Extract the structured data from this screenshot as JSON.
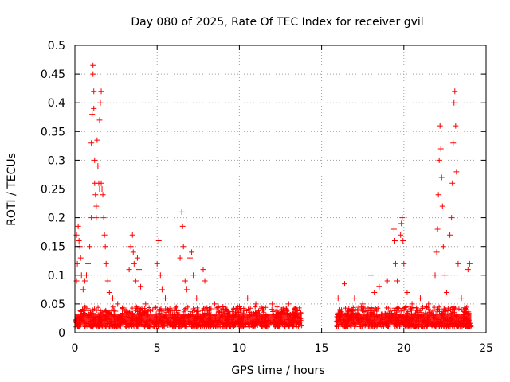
{
  "chart_data": {
    "type": "scatter",
    "title": "Day 080 of 2025, Rate Of TEC Index for receiver gvil",
    "xlabel": "GPS time / hours",
    "ylabel": "ROTI / TECUs",
    "xlim": [
      0,
      25
    ],
    "ylim": [
      0,
      0.5
    ],
    "xticks": [
      0,
      5,
      10,
      15,
      20,
      25
    ],
    "yticks": [
      0,
      0.05,
      0.1,
      0.15,
      0.2,
      0.25,
      0.3,
      0.35,
      0.4,
      0.45,
      0.5
    ],
    "xtick_labels": [
      "0",
      "5",
      "10",
      "15",
      "20",
      "25"
    ],
    "ytick_labels": [
      "0",
      "0.05",
      "0.1",
      "0.15",
      "0.2",
      "0.25",
      "0.3",
      "0.35",
      "0.4",
      "0.45",
      "0.5"
    ],
    "grid": true,
    "marker": "+",
    "series_color": "#ff0000",
    "data_gap_hours": [
      13.8,
      15.9
    ],
    "series": [
      {
        "name": "ROTI",
        "points": [
          [
            0.1,
            0.09
          ],
          [
            0.1,
            0.17
          ],
          [
            0.15,
            0.12
          ],
          [
            0.2,
            0.185
          ],
          [
            0.25,
            0.16
          ],
          [
            0.3,
            0.15
          ],
          [
            0.35,
            0.13
          ],
          [
            0.4,
            0.1
          ],
          [
            0.5,
            0.075
          ],
          [
            0.6,
            0.09
          ],
          [
            0.7,
            0.1
          ],
          [
            0.8,
            0.12
          ],
          [
            0.9,
            0.15
          ],
          [
            1.0,
            0.2
          ],
          [
            1.0,
            0.33
          ],
          [
            1.05,
            0.38
          ],
          [
            1.1,
            0.465
          ],
          [
            1.1,
            0.45
          ],
          [
            1.15,
            0.42
          ],
          [
            1.15,
            0.39
          ],
          [
            1.2,
            0.3
          ],
          [
            1.2,
            0.26
          ],
          [
            1.25,
            0.24
          ],
          [
            1.3,
            0.22
          ],
          [
            1.3,
            0.2
          ],
          [
            1.35,
            0.335
          ],
          [
            1.4,
            0.29
          ],
          [
            1.45,
            0.26
          ],
          [
            1.5,
            0.25
          ],
          [
            1.5,
            0.37
          ],
          [
            1.55,
            0.4
          ],
          [
            1.6,
            0.42
          ],
          [
            1.6,
            0.26
          ],
          [
            1.65,
            0.25
          ],
          [
            1.7,
            0.24
          ],
          [
            1.75,
            0.2
          ],
          [
            1.8,
            0.17
          ],
          [
            1.85,
            0.15
          ],
          [
            1.9,
            0.12
          ],
          [
            2.0,
            0.09
          ],
          [
            2.1,
            0.07
          ],
          [
            2.3,
            0.06
          ],
          [
            2.6,
            0.05
          ],
          [
            3.0,
            0.04
          ],
          [
            3.3,
            0.11
          ],
          [
            3.4,
            0.15
          ],
          [
            3.5,
            0.17
          ],
          [
            3.55,
            0.14
          ],
          [
            3.6,
            0.12
          ],
          [
            3.7,
            0.09
          ],
          [
            3.8,
            0.13
          ],
          [
            3.9,
            0.11
          ],
          [
            4.0,
            0.08
          ],
          [
            4.3,
            0.05
          ],
          [
            5.0,
            0.12
          ],
          [
            5.1,
            0.16
          ],
          [
            5.2,
            0.1
          ],
          [
            5.3,
            0.075
          ],
          [
            5.5,
            0.06
          ],
          [
            6.4,
            0.13
          ],
          [
            6.5,
            0.21
          ],
          [
            6.55,
            0.185
          ],
          [
            6.6,
            0.15
          ],
          [
            6.7,
            0.09
          ],
          [
            6.8,
            0.075
          ],
          [
            7.0,
            0.13
          ],
          [
            7.1,
            0.14
          ],
          [
            7.2,
            0.1
          ],
          [
            7.4,
            0.06
          ],
          [
            7.8,
            0.11
          ],
          [
            7.9,
            0.09
          ],
          [
            8.5,
            0.05
          ],
          [
            9.0,
            0.045
          ],
          [
            10.0,
            0.045
          ],
          [
            10.5,
            0.06
          ],
          [
            11.0,
            0.05
          ],
          [
            12.0,
            0.05
          ],
          [
            13.0,
            0.05
          ],
          [
            13.5,
            0.04
          ],
          [
            16.0,
            0.06
          ],
          [
            16.4,
            0.085
          ],
          [
            17.0,
            0.06
          ],
          [
            17.5,
            0.05
          ],
          [
            18.0,
            0.1
          ],
          [
            18.2,
            0.07
          ],
          [
            18.5,
            0.08
          ],
          [
            19.0,
            0.09
          ],
          [
            19.4,
            0.18
          ],
          [
            19.45,
            0.16
          ],
          [
            19.5,
            0.12
          ],
          [
            19.6,
            0.09
          ],
          [
            19.8,
            0.17
          ],
          [
            19.85,
            0.19
          ],
          [
            19.9,
            0.2
          ],
          [
            19.95,
            0.16
          ],
          [
            20.0,
            0.12
          ],
          [
            20.2,
            0.07
          ],
          [
            20.5,
            0.05
          ],
          [
            21.0,
            0.06
          ],
          [
            21.5,
            0.05
          ],
          [
            21.9,
            0.1
          ],
          [
            22.0,
            0.14
          ],
          [
            22.05,
            0.18
          ],
          [
            22.1,
            0.24
          ],
          [
            22.15,
            0.3
          ],
          [
            22.2,
            0.36
          ],
          [
            22.25,
            0.32
          ],
          [
            22.3,
            0.27
          ],
          [
            22.35,
            0.22
          ],
          [
            22.4,
            0.15
          ],
          [
            22.5,
            0.1
          ],
          [
            22.6,
            0.07
          ],
          [
            22.8,
            0.17
          ],
          [
            22.9,
            0.2
          ],
          [
            22.95,
            0.26
          ],
          [
            23.0,
            0.33
          ],
          [
            23.05,
            0.4
          ],
          [
            23.1,
            0.42
          ],
          [
            23.15,
            0.36
          ],
          [
            23.2,
            0.28
          ],
          [
            23.3,
            0.12
          ],
          [
            23.5,
            0.06
          ],
          [
            23.8,
            0.04
          ],
          [
            23.9,
            0.11
          ],
          [
            24.0,
            0.12
          ]
        ]
      }
    ],
    "baseline_band": {
      "x_ranges": [
        [
          0,
          13.8
        ],
        [
          15.9,
          24.1
        ]
      ],
      "y_min": 0.01,
      "y_max": 0.045
    }
  }
}
